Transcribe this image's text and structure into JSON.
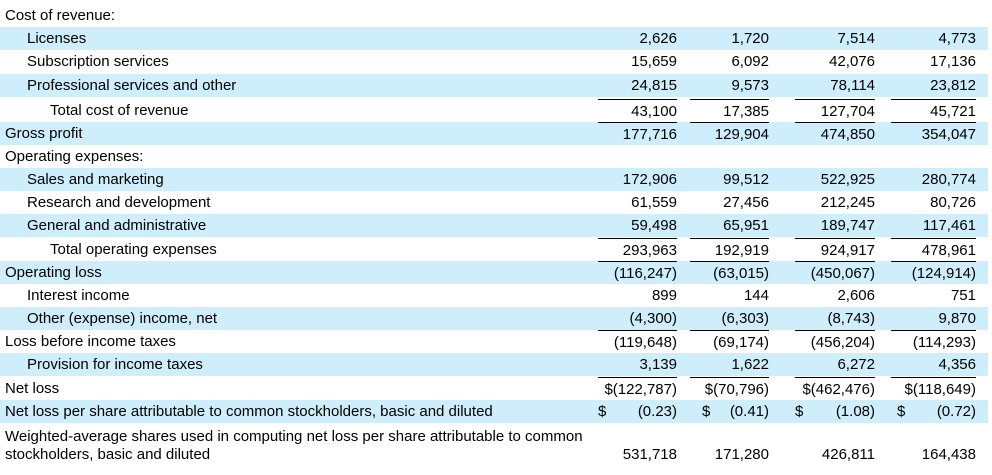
{
  "rows": [
    {
      "label": "Cost of revenue:",
      "indent": 0,
      "shade": false,
      "values": [
        "",
        "",
        "",
        ""
      ]
    },
    {
      "label": "Licenses",
      "indent": 1,
      "shade": true,
      "values": [
        "2,626",
        "1,720",
        "7,514",
        "4,773"
      ]
    },
    {
      "label": "Subscription services",
      "indent": 1,
      "shade": false,
      "values": [
        "15,659",
        "6,092",
        "42,076",
        "17,136"
      ]
    },
    {
      "label": "Professional services and other",
      "indent": 1,
      "shade": true,
      "values": [
        "24,815",
        "9,573",
        "78,114",
        "23,812"
      ]
    },
    {
      "label": "Total cost of revenue",
      "indent": 2,
      "shade": false,
      "values": [
        "43,100",
        "17,385",
        "127,704",
        "45,721"
      ]
    },
    {
      "label": "Gross profit",
      "indent": 0,
      "shade": true,
      "values": [
        "177,716",
        "129,904",
        "474,850",
        "354,047"
      ]
    },
    {
      "label": "Operating expenses:",
      "indent": 0,
      "shade": false,
      "values": [
        "",
        "",
        "",
        ""
      ]
    },
    {
      "label": "Sales and marketing",
      "indent": 1,
      "shade": true,
      "values": [
        "172,906",
        "99,512",
        "522,925",
        "280,774"
      ]
    },
    {
      "label": "Research and development",
      "indent": 1,
      "shade": false,
      "values": [
        "61,559",
        "27,456",
        "212,245",
        "80,726"
      ]
    },
    {
      "label": "General and administrative",
      "indent": 1,
      "shade": true,
      "values": [
        "59,498",
        "65,951",
        "189,747",
        "117,461"
      ]
    },
    {
      "label": "Total operating expenses",
      "indent": 2,
      "shade": false,
      "values": [
        "293,963",
        "192,919",
        "924,917",
        "478,961"
      ]
    },
    {
      "label": "Operating loss",
      "indent": 0,
      "shade": true,
      "values": [
        "(116,247)",
        "(63,015)",
        "(450,067)",
        "(124,914)"
      ]
    },
    {
      "label": "Interest income",
      "indent": 1,
      "shade": false,
      "values": [
        "899",
        "144",
        "2,606",
        "751"
      ]
    },
    {
      "label": "Other (expense) income, net",
      "indent": 1,
      "shade": true,
      "values": [
        "(4,300)",
        "(6,303)",
        "(8,743)",
        "9,870"
      ]
    },
    {
      "label": "Loss before income taxes",
      "indent": 0,
      "shade": false,
      "values": [
        "(119,648)",
        "(69,174)",
        "(456,204)",
        "(114,293)"
      ]
    },
    {
      "label": "Provision for income taxes",
      "indent": 1,
      "shade": true,
      "values": [
        "3,139",
        "1,622",
        "6,272",
        "4,356"
      ]
    },
    {
      "label": "Net loss",
      "indent": 0,
      "shade": false,
      "values": [
        "$(122,787)",
        "$(70,796)",
        "$(462,476)",
        "$(118,649)"
      ]
    },
    {
      "label": "Net loss per share attributable to common stockholders, basic and diluted",
      "indent": 0,
      "shade": true,
      "values": [
        "(0.23)",
        "(0.41)",
        "(1.08)",
        "(0.72)"
      ],
      "currency": "$"
    },
    {
      "label": "Weighted-average shares used in computing net loss per share attributable to common stockholders, basic and diluted",
      "indent": 0,
      "shade": false,
      "values": [
        "531,718",
        "171,280",
        "426,811",
        "164,438"
      ]
    }
  ]
}
